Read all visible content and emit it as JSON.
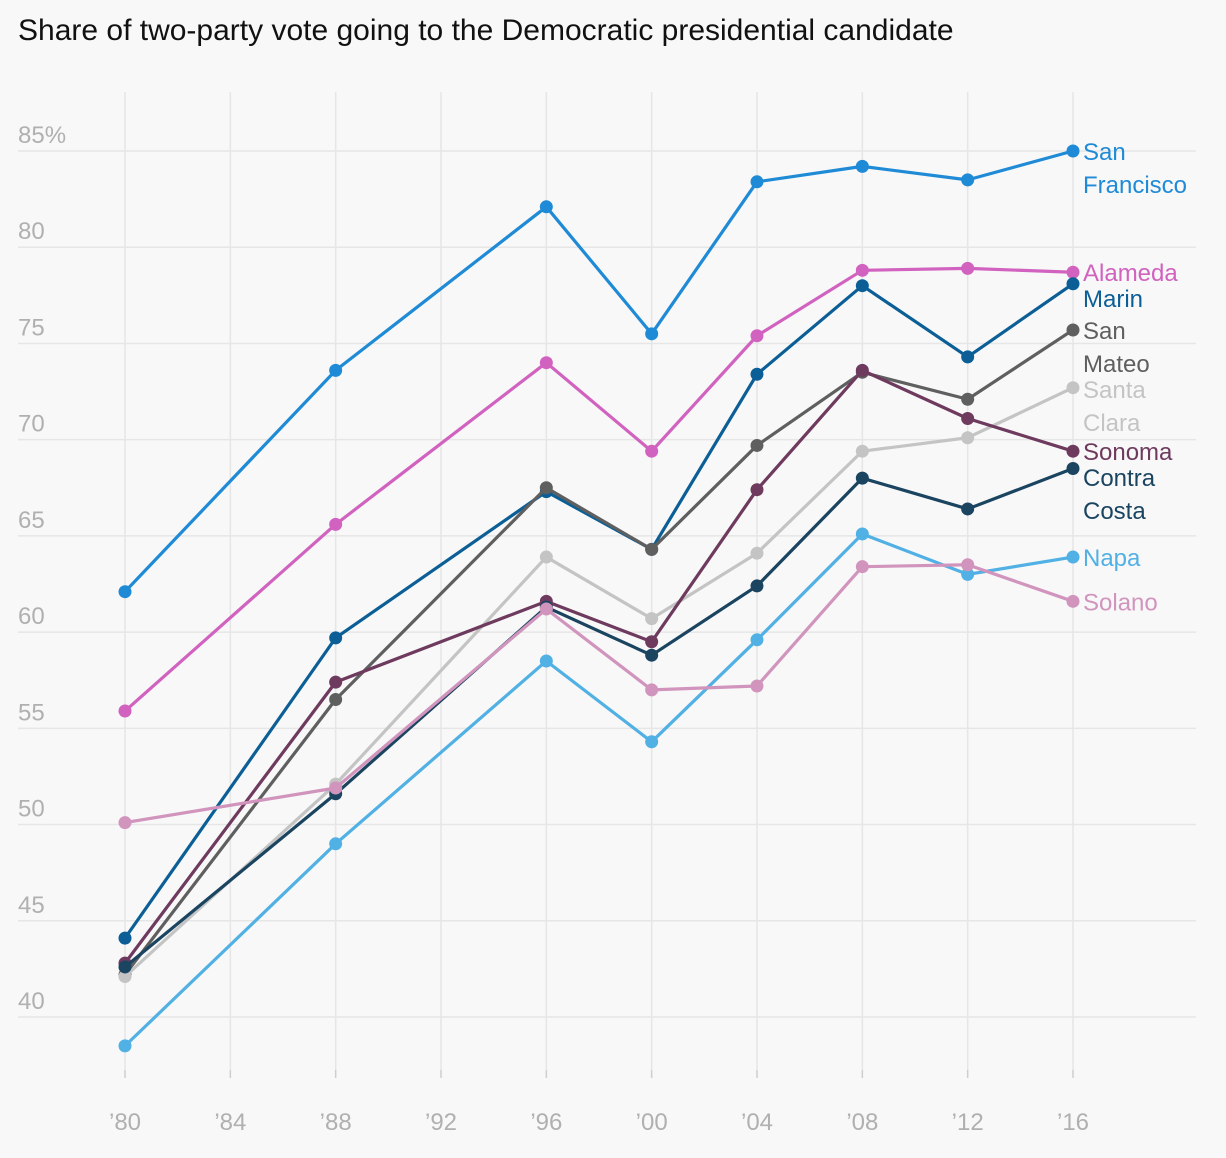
{
  "chart_data": {
    "type": "line",
    "title": "Share of two-party vote going to the Democratic presidential candidate",
    "xlabel": "",
    "ylabel": "",
    "x": [
      1980,
      1988,
      1996,
      2000,
      2004,
      2008,
      2012,
      2016
    ],
    "x_ticks": [
      1980,
      1984,
      1988,
      1992,
      1996,
      2000,
      2004,
      2008,
      2012,
      2016
    ],
    "x_tick_labels": [
      "’80",
      "’84",
      "’88",
      "’92",
      "’96",
      "’00",
      "’04",
      "’08",
      "’12",
      "’16"
    ],
    "xlim": [
      1980,
      2016
    ],
    "y_ticks": [
      40,
      45,
      50,
      55,
      60,
      65,
      70,
      75,
      80,
      85
    ],
    "y_tick_labels": [
      "40",
      "45",
      "50",
      "55",
      "60",
      "65",
      "70",
      "75",
      "80",
      "85%"
    ],
    "ylim": [
      37,
      88
    ],
    "grid": true,
    "legend": "direct labels at right end of each line",
    "series": [
      {
        "name": "San Francisco",
        "label_lines": [
          "San",
          "Francisco"
        ],
        "color": "#1f8ad6",
        "values": [
          62.1,
          73.6,
          82.1,
          75.5,
          83.4,
          84.2,
          83.5,
          85.0
        ]
      },
      {
        "name": "Alameda",
        "label_lines": [
          "Alameda"
        ],
        "color": "#d162bf",
        "values": [
          55.9,
          65.6,
          74.0,
          69.4,
          75.4,
          78.8,
          78.9,
          78.7
        ]
      },
      {
        "name": "Marin",
        "label_lines": [
          "Marin"
        ],
        "color": "#0b5f96",
        "values": [
          44.1,
          59.7,
          67.3,
          64.3,
          73.4,
          78.0,
          74.3,
          78.1
        ]
      },
      {
        "name": "San Mateo",
        "label_lines": [
          "San",
          "Mateo"
        ],
        "color": "#5f5f5f",
        "values": [
          42.2,
          56.5,
          67.5,
          64.3,
          69.7,
          73.5,
          72.1,
          75.7
        ]
      },
      {
        "name": "Santa Clara",
        "label_lines": [
          "Santa",
          "Clara"
        ],
        "color": "#c4c4c4",
        "values": [
          42.1,
          52.1,
          63.9,
          60.7,
          64.1,
          69.4,
          70.1,
          72.7
        ]
      },
      {
        "name": "Sonoma",
        "label_lines": [
          "Sonoma"
        ],
        "color": "#6e3a5e",
        "values": [
          42.8,
          57.4,
          61.6,
          59.5,
          67.4,
          73.6,
          71.1,
          69.4
        ]
      },
      {
        "name": "Contra Costa",
        "label_lines": [
          "Contra",
          "Costa"
        ],
        "color": "#1a4460",
        "values": [
          42.6,
          51.6,
          61.3,
          58.8,
          62.4,
          68.0,
          66.4,
          68.5
        ]
      },
      {
        "name": "Napa",
        "label_lines": [
          "Napa"
        ],
        "color": "#51b0e4",
        "values": [
          38.5,
          49.0,
          58.5,
          54.3,
          59.6,
          65.1,
          63.0,
          63.9
        ]
      },
      {
        "name": "Solano",
        "label_lines": [
          "Solano"
        ],
        "color": "#d195bd",
        "values": [
          50.1,
          51.9,
          61.2,
          57.0,
          57.2,
          63.4,
          63.5,
          61.6
        ]
      }
    ]
  }
}
